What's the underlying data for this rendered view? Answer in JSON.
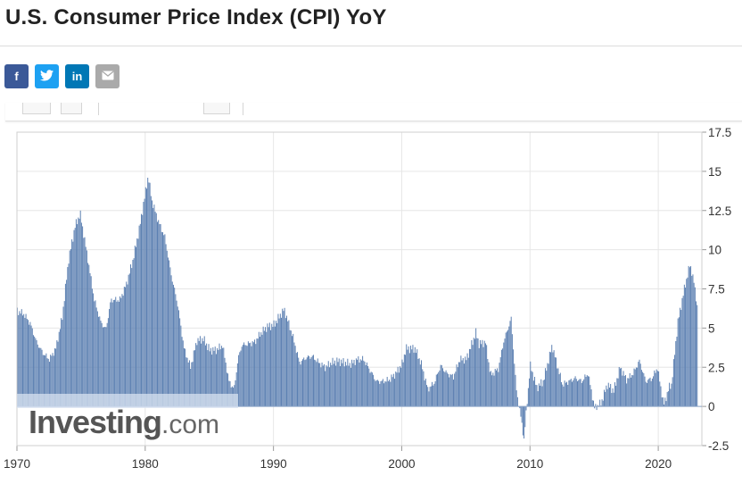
{
  "page": {
    "title": "U.S. Consumer Price Index (CPI) YoY"
  },
  "share": [
    {
      "name": "facebook-icon",
      "glyph": "f"
    },
    {
      "name": "twitter-icon",
      "glyph": "🐦"
    },
    {
      "name": "linkedin-icon",
      "glyph": "in"
    },
    {
      "name": "email-icon",
      "glyph": "✉"
    }
  ],
  "watermark": {
    "brand": "Investing",
    "suffix": ".com"
  },
  "colors": {
    "bar": "#5b7fb1",
    "bar_edge": "#4a6a9c",
    "grid": "#e6e6e6",
    "facebook": "#3b5998",
    "twitter": "#1da1f2",
    "linkedin": "#0077b5",
    "email": "#aaaaaa"
  },
  "chart_data": {
    "type": "bar",
    "title": "U.S. Consumer Price Index (CPI) YoY",
    "xlabel": "",
    "ylabel": "",
    "xlim": [
      1970,
      2023.4
    ],
    "ylim": [
      -2.5,
      17.5
    ],
    "grid": true,
    "y_axis_side": "right",
    "x_ticks": [
      "1970",
      "1980",
      "1990",
      "2000",
      "2010",
      "2020"
    ],
    "y_ticks": [
      "17.5",
      "15",
      "12.5",
      "10",
      "7.5",
      "5",
      "2.5",
      "0",
      "-2.5"
    ],
    "series": [
      {
        "frequency": "monthly",
        "start": 1970.0,
        "anchors": [
          [
            1970.0,
            6.1
          ],
          [
            1970.5,
            5.9
          ],
          [
            1971.0,
            5.3
          ],
          [
            1971.5,
            4.1
          ],
          [
            1972.0,
            3.4
          ],
          [
            1972.5,
            3.0
          ],
          [
            1973.0,
            3.7
          ],
          [
            1973.5,
            5.7
          ],
          [
            1974.0,
            9.4
          ],
          [
            1974.5,
            11.5
          ],
          [
            1974.9,
            12.3
          ],
          [
            1975.5,
            9.4
          ],
          [
            1976.0,
            6.8
          ],
          [
            1976.5,
            5.4
          ],
          [
            1976.9,
            4.9
          ],
          [
            1977.3,
            6.8
          ],
          [
            1978.0,
            6.8
          ],
          [
            1978.5,
            7.8
          ],
          [
            1979.0,
            9.3
          ],
          [
            1979.5,
            11.3
          ],
          [
            1980.2,
            14.7
          ],
          [
            1980.5,
            13.1
          ],
          [
            1981.0,
            11.8
          ],
          [
            1981.5,
            10.8
          ],
          [
            1982.0,
            8.4
          ],
          [
            1982.5,
            6.5
          ],
          [
            1983.0,
            3.7
          ],
          [
            1983.5,
            2.5
          ],
          [
            1984.0,
            4.2
          ],
          [
            1984.5,
            4.3
          ],
          [
            1985.0,
            3.6
          ],
          [
            1985.5,
            3.6
          ],
          [
            1986.0,
            3.9
          ],
          [
            1986.5,
            1.6
          ],
          [
            1986.9,
            1.1
          ],
          [
            1987.2,
            3.0
          ],
          [
            1987.5,
            3.9
          ],
          [
            1988.0,
            4.0
          ],
          [
            1988.5,
            4.1
          ],
          [
            1989.0,
            4.7
          ],
          [
            1989.5,
            5.1
          ],
          [
            1990.0,
            5.2
          ],
          [
            1990.8,
            6.2
          ],
          [
            1991.0,
            5.7
          ],
          [
            1991.5,
            4.4
          ],
          [
            1992.0,
            2.8
          ],
          [
            1992.5,
            3.1
          ],
          [
            1993.0,
            3.2
          ],
          [
            1993.5,
            2.8
          ],
          [
            1994.0,
            2.5
          ],
          [
            1994.5,
            2.8
          ],
          [
            1995.0,
            2.9
          ],
          [
            1995.5,
            2.8
          ],
          [
            1996.0,
            2.7
          ],
          [
            1996.5,
            3.0
          ],
          [
            1997.0,
            3.0
          ],
          [
            1997.5,
            2.3
          ],
          [
            1998.0,
            1.6
          ],
          [
            1998.5,
            1.6
          ],
          [
            1999.0,
            1.7
          ],
          [
            1999.5,
            2.1
          ],
          [
            2000.0,
            2.7
          ],
          [
            2000.3,
            3.7
          ],
          [
            2001.0,
            3.7
          ],
          [
            2001.5,
            2.7
          ],
          [
            2002.0,
            1.1
          ],
          [
            2002.5,
            1.5
          ],
          [
            2003.0,
            2.6
          ],
          [
            2003.5,
            2.1
          ],
          [
            2004.0,
            1.9
          ],
          [
            2004.5,
            3.0
          ],
          [
            2005.0,
            3.0
          ],
          [
            2005.75,
            4.7
          ],
          [
            2006.0,
            4.0
          ],
          [
            2006.5,
            4.1
          ],
          [
            2006.9,
            2.0
          ],
          [
            2007.5,
            2.4
          ],
          [
            2007.9,
            4.1
          ],
          [
            2008.5,
            5.6
          ],
          [
            2008.9,
            1.1
          ],
          [
            2009.2,
            -0.4
          ],
          [
            2009.5,
            -2.1
          ],
          [
            2009.9,
            1.8
          ],
          [
            2010.0,
            2.6
          ],
          [
            2010.5,
            1.2
          ],
          [
            2011.0,
            1.6
          ],
          [
            2011.7,
            3.9
          ],
          [
            2012.0,
            2.9
          ],
          [
            2012.5,
            1.4
          ],
          [
            2013.0,
            1.6
          ],
          [
            2013.5,
            1.8
          ],
          [
            2014.0,
            1.6
          ],
          [
            2014.5,
            2.1
          ],
          [
            2015.0,
            -0.1
          ],
          [
            2015.5,
            0.2
          ],
          [
            2016.0,
            1.4
          ],
          [
            2016.5,
            1.0
          ],
          [
            2017.0,
            2.5
          ],
          [
            2017.5,
            1.7
          ],
          [
            2018.0,
            2.1
          ],
          [
            2018.5,
            2.9
          ],
          [
            2019.0,
            1.6
          ],
          [
            2019.5,
            1.8
          ],
          [
            2019.9,
            2.5
          ],
          [
            2020.4,
            0.1
          ],
          [
            2020.8,
            1.2
          ],
          [
            2021.0,
            1.4
          ],
          [
            2021.5,
            5.4
          ],
          [
            2022.0,
            7.5
          ],
          [
            2022.45,
            9.1
          ],
          [
            2022.8,
            7.7
          ],
          [
            2023.0,
            6.4
          ]
        ]
      }
    ]
  }
}
